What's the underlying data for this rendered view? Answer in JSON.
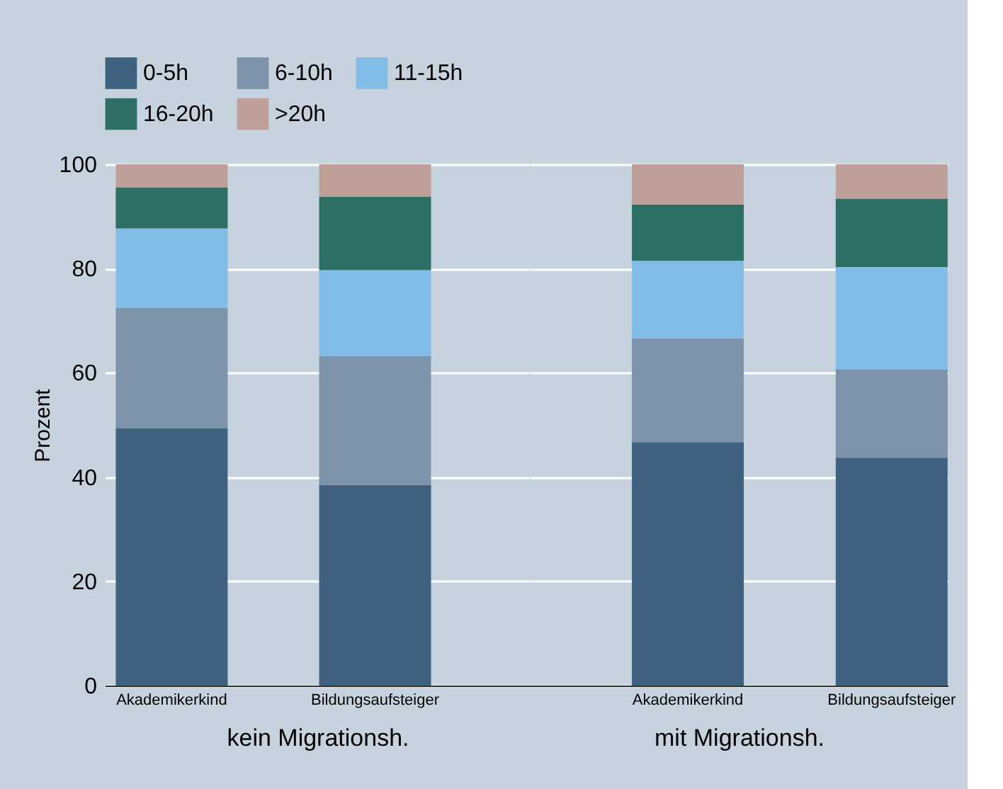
{
  "chart_data": [
    {
      "type": "bar",
      "stacked": true,
      "xlabel": "kein Migrationsh.",
      "ylabel": "Prozent",
      "categories": [
        "Akademikerkind",
        "Bildungsaufsteiger"
      ],
      "series": [
        {
          "name": "0-5h",
          "color": "#3e6280",
          "values": [
            49.4,
            38.5
          ]
        },
        {
          "name": "6-10h",
          "color": "#7d93aa",
          "values": [
            23.1,
            24.7
          ]
        },
        {
          "name": "11-15h",
          "color": "#82bde8",
          "values": [
            15.2,
            16.5
          ]
        },
        {
          "name": "16-20h",
          "color": "#2d6e65",
          "values": [
            7.9,
            14.1
          ]
        },
        {
          "name": ">20h",
          "color": "#bfa099",
          "values": [
            4.4,
            6.2
          ]
        }
      ],
      "ylim": [
        0,
        100
      ],
      "yticks": [
        0,
        20,
        40,
        60,
        80,
        100
      ],
      "grid": "y",
      "legend": "top"
    },
    {
      "type": "bar",
      "stacked": true,
      "xlabel": "mit Migrationsh.",
      "categories": [
        "Akademikerkind",
        "Bildungsaufsteiger"
      ],
      "series": [
        {
          "color": "#3e6280",
          "values": [
            46.7,
            43.7
          ]
        },
        {
          "color": "#7d93aa",
          "values": [
            19.9,
            17.0
          ]
        },
        {
          "color": "#82bde8",
          "values": [
            14.9,
            19.6
          ]
        },
        {
          "color": "#2d6e65",
          "values": [
            10.8,
            13.1
          ]
        },
        {
          "color": "#bfa099",
          "values": [
            7.7,
            6.6
          ]
        }
      ],
      "ylim": [
        0,
        100
      ],
      "yticks": [
        0,
        20,
        40,
        60,
        80,
        100
      ],
      "grid": "y",
      "tick_labels": "x"
    }
  ]
}
